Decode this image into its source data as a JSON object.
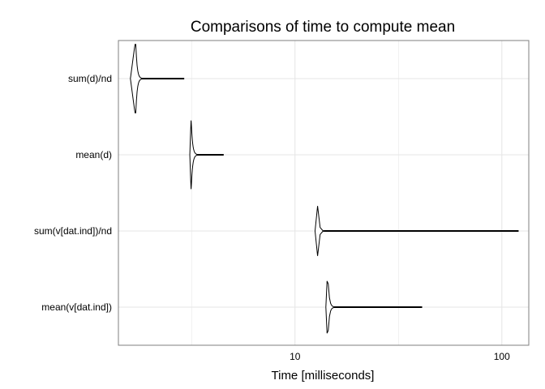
{
  "chart_data": {
    "type": "violin",
    "title": "Comparisons of time to compute mean",
    "xlabel": "Time [milliseconds]",
    "ylabel": "",
    "x_scale": "log10",
    "xlim": [
      1.4,
      135
    ],
    "x_ticks": [
      10,
      100
    ],
    "x_tick_labels": [
      "10",
      "100"
    ],
    "grid": true,
    "legend": "none",
    "colors": {
      "panel_border": "#7f7f7f",
      "grid": "#e6e6e6",
      "violin": "#000000"
    },
    "categories": [
      "sum(d)/nd",
      "mean(d)",
      "sum(v[dat.ind])/nd",
      "mean(v[dat.ind])"
    ],
    "series": [
      {
        "label": "sum(d)/nd",
        "min": 1.6,
        "median": 1.7,
        "max": 2.9
      },
      {
        "label": "mean(d)",
        "min": 3.1,
        "median": 3.15,
        "max": 4.5
      },
      {
        "label": "sum(v[dat.ind])/nd",
        "min": 12.5,
        "median": 12.8,
        "max": 120
      },
      {
        "label": "mean(v[dat.ind])",
        "min": 14.1,
        "median": 14.4,
        "max": 41
      }
    ]
  }
}
